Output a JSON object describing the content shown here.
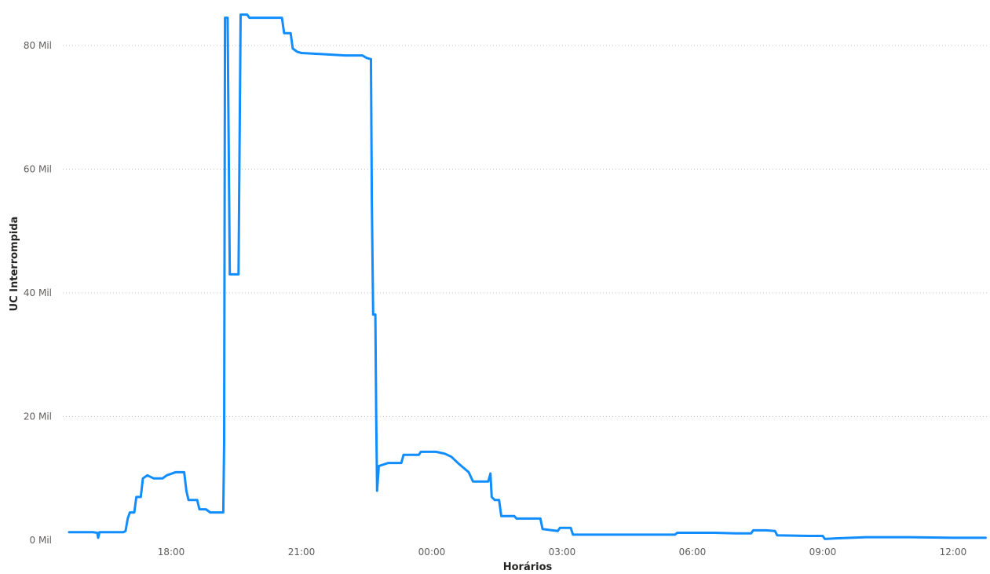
{
  "chart_data": {
    "type": "line",
    "xlabel": "Horários",
    "ylabel": "UC Interrompida",
    "grid": true,
    "color": "#118DFF",
    "x_ticks": [
      {
        "hour": 18,
        "label": "18:00"
      },
      {
        "hour": 21,
        "label": "21:00"
      },
      {
        "hour": 24,
        "label": "00:00"
      },
      {
        "hour": 27,
        "label": "03:00"
      },
      {
        "hour": 30,
        "label": "06:00"
      },
      {
        "hour": 33,
        "label": "09:00"
      },
      {
        "hour": 36,
        "label": "12:00"
      }
    ],
    "y_ticks": [
      {
        "value": 0,
        "label": "0 Mil"
      },
      {
        "value": 20000,
        "label": "20 Mil"
      },
      {
        "value": 40000,
        "label": "40 Mil"
      },
      {
        "value": 60000,
        "label": "60 Mil"
      },
      {
        "value": 80000,
        "label": "80 Mil"
      }
    ],
    "xlim": [
      15.6,
      36.8
    ],
    "ylim": [
      0,
      85000
    ],
    "series": [
      {
        "points": [
          [
            15.65,
            1300
          ],
          [
            16.2,
            1300
          ],
          [
            16.3,
            1200
          ],
          [
            16.32,
            400
          ],
          [
            16.35,
            1300
          ],
          [
            16.9,
            1300
          ],
          [
            16.95,
            1500
          ],
          [
            17.0,
            3500
          ],
          [
            17.05,
            4500
          ],
          [
            17.15,
            4500
          ],
          [
            17.2,
            7000
          ],
          [
            17.3,
            7000
          ],
          [
            17.35,
            10000
          ],
          [
            17.45,
            10500
          ],
          [
            17.6,
            10000
          ],
          [
            17.8,
            10000
          ],
          [
            17.9,
            10500
          ],
          [
            18.1,
            11000
          ],
          [
            18.3,
            11000
          ],
          [
            18.35,
            8000
          ],
          [
            18.4,
            6500
          ],
          [
            18.6,
            6500
          ],
          [
            18.65,
            5000
          ],
          [
            18.8,
            5000
          ],
          [
            18.9,
            4500
          ],
          [
            19.0,
            4500
          ],
          [
            19.2,
            4500
          ],
          [
            19.22,
            16000
          ],
          [
            19.24,
            84500
          ],
          [
            19.3,
            84500
          ],
          [
            19.35,
            43000
          ],
          [
            19.55,
            43000
          ],
          [
            19.6,
            85000
          ],
          [
            19.75,
            85000
          ],
          [
            19.8,
            84500
          ],
          [
            20.4,
            84500
          ],
          [
            20.55,
            84500
          ],
          [
            20.6,
            82000
          ],
          [
            20.75,
            82000
          ],
          [
            20.8,
            79500
          ],
          [
            20.9,
            79000
          ],
          [
            21.0,
            78800
          ],
          [
            21.5,
            78600
          ],
          [
            22.0,
            78400
          ],
          [
            22.4,
            78400
          ],
          [
            22.5,
            78000
          ],
          [
            22.6,
            77800
          ],
          [
            22.62,
            55000
          ],
          [
            22.65,
            36500
          ],
          [
            22.7,
            36500
          ],
          [
            22.72,
            20000
          ],
          [
            22.74,
            8000
          ],
          [
            22.78,
            12000
          ],
          [
            23.0,
            12500
          ],
          [
            23.3,
            12500
          ],
          [
            23.35,
            13800
          ],
          [
            23.7,
            13800
          ],
          [
            23.75,
            14300
          ],
          [
            24.1,
            14300
          ],
          [
            24.3,
            14000
          ],
          [
            24.45,
            13500
          ],
          [
            24.6,
            12500
          ],
          [
            24.85,
            11000
          ],
          [
            24.95,
            9500
          ],
          [
            25.3,
            9500
          ],
          [
            25.35,
            10800
          ],
          [
            25.38,
            7000
          ],
          [
            25.45,
            6500
          ],
          [
            25.55,
            6500
          ],
          [
            25.6,
            3900
          ],
          [
            25.9,
            3900
          ],
          [
            25.95,
            3500
          ],
          [
            26.5,
            3500
          ],
          [
            26.55,
            1800
          ],
          [
            26.9,
            1500
          ],
          [
            26.95,
            2000
          ],
          [
            27.2,
            2000
          ],
          [
            27.25,
            900
          ],
          [
            29.0,
            900
          ],
          [
            29.6,
            900
          ],
          [
            29.65,
            1200
          ],
          [
            30.5,
            1200
          ],
          [
            31.0,
            1100
          ],
          [
            31.35,
            1100
          ],
          [
            31.4,
            1600
          ],
          [
            31.7,
            1600
          ],
          [
            31.9,
            1500
          ],
          [
            31.95,
            800
          ],
          [
            32.7,
            700
          ],
          [
            33.0,
            700
          ],
          [
            33.05,
            200
          ],
          [
            33.3,
            300
          ],
          [
            34.0,
            500
          ],
          [
            35.0,
            500
          ],
          [
            36.0,
            400
          ],
          [
            36.75,
            400
          ]
        ]
      }
    ]
  }
}
